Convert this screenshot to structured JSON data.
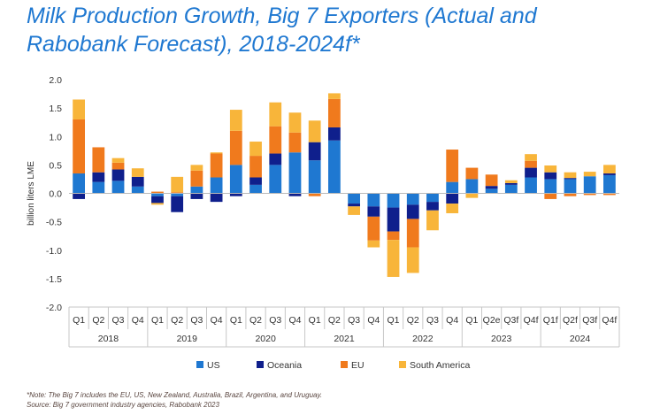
{
  "title_line1": "Milk Production Growth, Big 7 Exporters (Actual and",
  "title_line2": "Rabobank Forecast), 2018-2024f*",
  "note": "*Note: The Big 7 includes the EU, US, New Zealand, Australia, Brazil, Argentina, and Uruguay.",
  "source": "Source: Big 7 government industry agencies, Rabobank 2023",
  "chart_data": {
    "type": "bar",
    "stacked": true,
    "ylabel": "billion liters LME",
    "ylim": [
      -2.0,
      2.0
    ],
    "yticks": [
      "2.0",
      "1.5",
      "1.0",
      "0.5",
      "0.0",
      "-0.5",
      "-1.0",
      "-1.5",
      "-2.0"
    ],
    "ytick_values": [
      2.0,
      1.5,
      1.0,
      0.5,
      0.0,
      -0.5,
      -1.0,
      -1.5,
      -2.0
    ],
    "grid": false,
    "legend_position": "bottom",
    "categories": [
      "Q1",
      "Q2",
      "Q3",
      "Q4",
      "Q1",
      "Q2",
      "Q3",
      "Q4",
      "Q1",
      "Q2",
      "Q3",
      "Q4",
      "Q1",
      "Q2",
      "Q3",
      "Q4",
      "Q1",
      "Q2",
      "Q3",
      "Q4",
      "Q1",
      "Q2e",
      "Q3f",
      "Q4f",
      "Q1f",
      "Q2f",
      "Q3f",
      "Q4f"
    ],
    "years": [
      "2018",
      "2019",
      "2020",
      "2021",
      "2022",
      "2023",
      "2024"
    ],
    "series": [
      {
        "name": "US",
        "color": "#1f78d1",
        "values": [
          0.35,
          0.2,
          0.22,
          0.12,
          -0.05,
          -0.05,
          0.12,
          0.28,
          0.5,
          0.15,
          0.5,
          0.72,
          0.58,
          0.93,
          -0.18,
          -0.23,
          -0.25,
          -0.2,
          -0.15,
          0.2,
          0.25,
          0.08,
          0.15,
          0.28,
          0.25,
          0.25,
          0.3,
          0.32
        ]
      },
      {
        "name": "Oceania",
        "color": "#0f1f8c",
        "values": [
          -0.1,
          0.17,
          0.2,
          0.17,
          -0.12,
          -0.28,
          -0.1,
          -0.15,
          -0.05,
          0.13,
          0.2,
          -0.05,
          0.32,
          0.23,
          -0.05,
          -0.18,
          -0.42,
          -0.25,
          -0.15,
          -0.18,
          0.0,
          0.05,
          0.03,
          0.17,
          0.12,
          0.02,
          0.0,
          0.03
        ]
      },
      {
        "name": "EU",
        "color": "#f07a1d",
        "values": [
          0.95,
          0.44,
          0.12,
          0.0,
          0.03,
          0.02,
          0.28,
          0.42,
          0.6,
          0.38,
          0.48,
          0.35,
          -0.05,
          0.5,
          0.0,
          -0.42,
          -0.15,
          -0.5,
          0.0,
          0.57,
          0.2,
          0.2,
          0.0,
          0.12,
          -0.1,
          -0.05,
          -0.03,
          -0.03
        ]
      },
      {
        "name": "South America",
        "color": "#f8b53a",
        "values": [
          0.35,
          0.0,
          0.08,
          0.15,
          -0.03,
          0.27,
          0.1,
          0.02,
          0.37,
          0.25,
          0.42,
          0.35,
          0.38,
          0.1,
          -0.15,
          -0.12,
          -0.65,
          -0.45,
          -0.35,
          -0.17,
          -0.08,
          0.0,
          0.05,
          0.12,
          0.12,
          0.1,
          0.08,
          0.15
        ]
      }
    ]
  }
}
